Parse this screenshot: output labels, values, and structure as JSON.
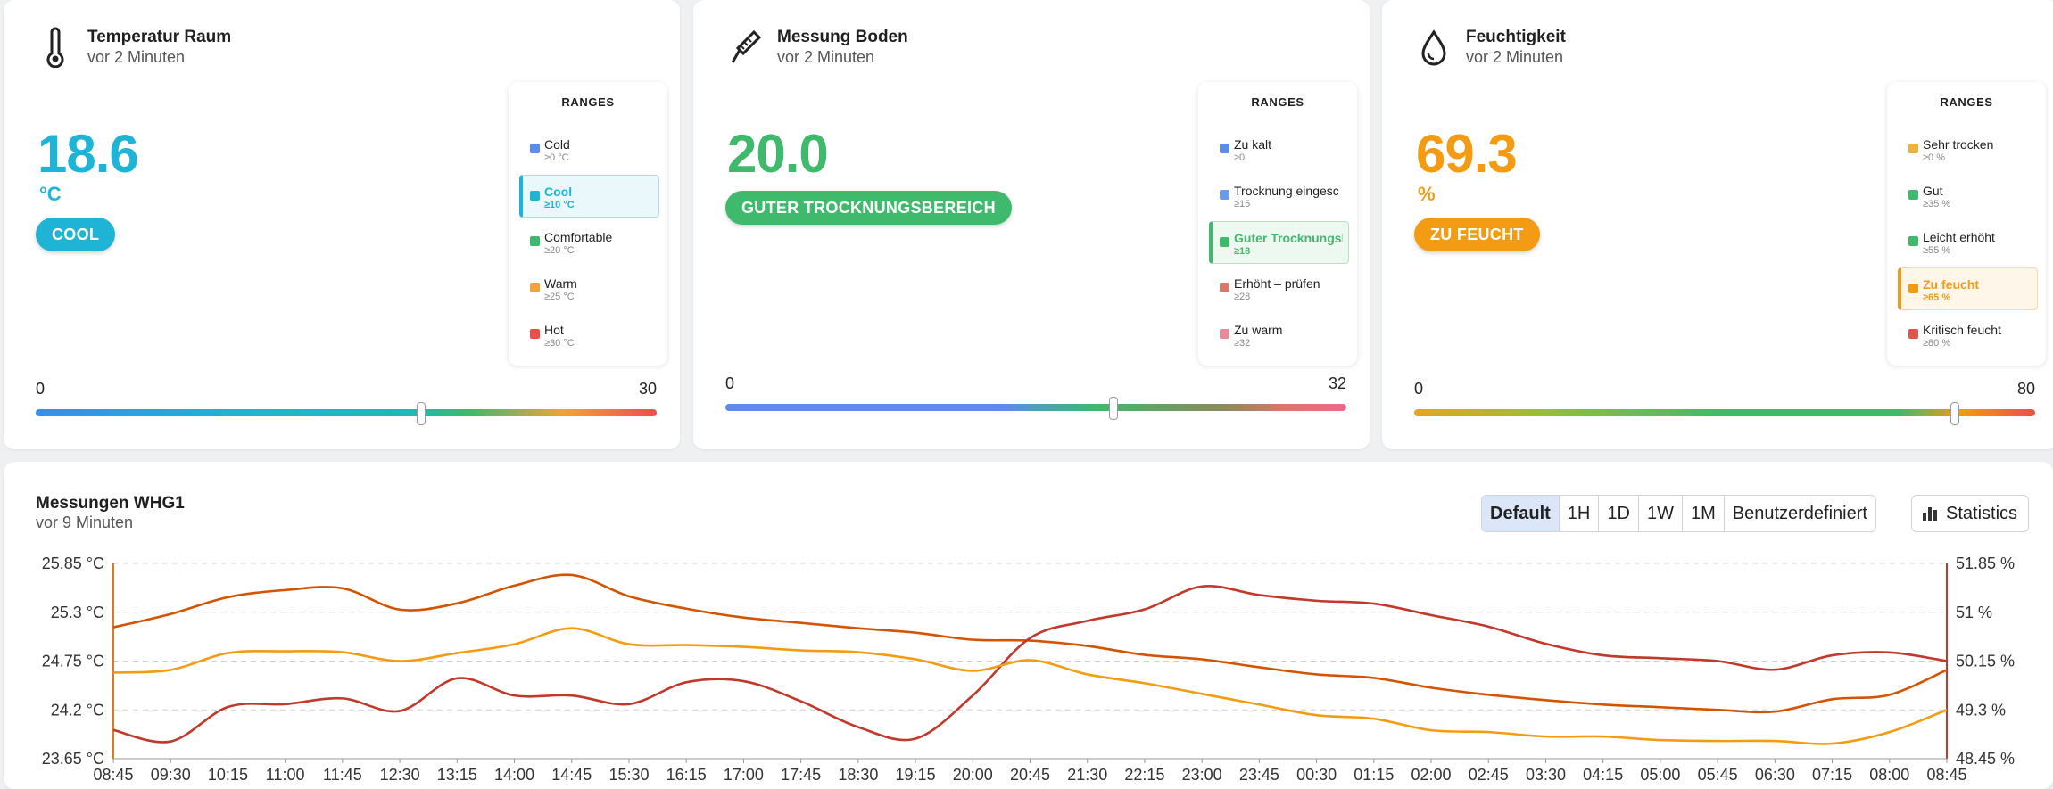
{
  "cards": [
    {
      "title": "Temperatur Raum",
      "subtitle": "vor 2 Minuten",
      "icon": "thermometer-icon",
      "value": "18.6",
      "unit": "°C",
      "state": "COOL",
      "color": "#1fb4d6",
      "ranges_title": "RANGES",
      "ranges": [
        {
          "label": "Cold",
          "min": "≥0 °C",
          "color": "#5b8de8"
        },
        {
          "label": "Cool",
          "min": "≥10 °C",
          "color": "#1fb4d6",
          "active": true
        },
        {
          "label": "Comfortable",
          "min": "≥20 °C",
          "color": "#3fb96b"
        },
        {
          "label": "Warm",
          "min": "≥25 °C",
          "color": "#f2a33a"
        },
        {
          "label": "Hot",
          "min": "≥30 °C",
          "color": "#e8504a"
        }
      ],
      "scale_min": "0",
      "scale_max": "30",
      "level": 0.62
    },
    {
      "title": "Messung Boden",
      "subtitle": "vor 2 Minuten",
      "icon": "sensor-probe-icon",
      "value": "20.0",
      "unit": "",
      "state": "GUTER TROCKNUNGSBEREICH",
      "color": "#3fb96b",
      "ranges_title": "RANGES",
      "ranges": [
        {
          "label": "Zu kalt",
          "min": "≥0",
          "color": "#5b8de8"
        },
        {
          "label": "Trocknung eingesc",
          "min": "≥15",
          "color": "#6a9ae8"
        },
        {
          "label": "Guter Trocknungsb",
          "min": "≥18",
          "color": "#3fb96b",
          "active": true
        },
        {
          "label": "Erhöht – prüfen",
          "min": "≥28",
          "color": "#d9776a"
        },
        {
          "label": "Zu warm",
          "min": "≥32",
          "color": "#ea8a98"
        }
      ],
      "scale_min": "0",
      "scale_max": "32",
      "level": 0.625
    },
    {
      "title": "Feuchtigkeit",
      "subtitle": "vor 2 Minuten",
      "icon": "water-drop-icon",
      "value": "69.3",
      "unit": "%",
      "state": "ZU FEUCHT",
      "color": "#f39b12",
      "ranges_title": "RANGES",
      "ranges": [
        {
          "label": "Sehr trocken",
          "min": "≥0 %",
          "color": "#f2b13a"
        },
        {
          "label": "Gut",
          "min": "≥35 %",
          "color": "#3fb96b"
        },
        {
          "label": "Leicht erhöht",
          "min": "≥55 %",
          "color": "#3fb96b"
        },
        {
          "label": "Zu feucht",
          "min": "≥65 %",
          "color": "#f39b12",
          "active": true
        },
        {
          "label": "Kritisch feucht",
          "min": "≥80 %",
          "color": "#e8504a"
        }
      ],
      "scale_min": "0",
      "scale_max": "80",
      "level": 0.87
    }
  ],
  "chart": {
    "title": "Messungen WHG1",
    "subtitle": "vor 9 Minuten",
    "range_buttons": [
      "Default",
      "1H",
      "1D",
      "1W",
      "1M",
      "Benutzerdefiniert"
    ],
    "selected_range": "Default",
    "statistics_label": "Statistics",
    "statistics_icon": "bar-chart-icon",
    "colors": {
      "left_axis": "#e07a1c",
      "right_axis": "#c0392b",
      "grid": "#d0d0d0"
    }
  },
  "chart_data": {
    "type": "line",
    "x": [
      "08:45",
      "09:30",
      "10:15",
      "11:00",
      "11:45",
      "12:30",
      "13:15",
      "14:00",
      "14:45",
      "15:30",
      "16:15",
      "17:00",
      "17:45",
      "18:30",
      "19:15",
      "20:00",
      "20:45",
      "21:30",
      "22:15",
      "23:00",
      "23:45",
      "00:30",
      "01:15",
      "02:00",
      "02:45",
      "03:30",
      "04:15",
      "05:00",
      "05:45",
      "06:30",
      "07:15",
      "08:00",
      "08:45"
    ],
    "y_left": {
      "ticks": [
        "25.85 °C",
        "25.3 °C",
        "24.75 °C",
        "24.2 °C",
        "23.65 °C"
      ],
      "range": [
        23.65,
        25.85
      ]
    },
    "y_right": {
      "ticks": [
        "51.85 %",
        "51 %",
        "50.15 %",
        "49.3 %",
        "48.45 %"
      ],
      "range": [
        48.45,
        51.85
      ]
    },
    "grid": true,
    "series": [
      {
        "axis": "left",
        "color": "#d35400",
        "values": [
          25.13,
          25.28,
          25.47,
          25.55,
          25.57,
          25.33,
          25.4,
          25.6,
          25.72,
          25.48,
          25.34,
          25.24,
          25.18,
          25.12,
          25.07,
          24.99,
          24.98,
          24.92,
          24.82,
          24.77,
          24.68,
          24.6,
          24.56,
          24.45,
          24.37,
          24.31,
          24.26,
          24.23,
          24.2,
          24.18,
          24.32,
          24.37,
          24.65
        ]
      },
      {
        "axis": "right",
        "color": "#c0392b",
        "values": [
          48.95,
          48.75,
          49.35,
          49.4,
          49.5,
          49.28,
          49.85,
          49.55,
          49.55,
          49.4,
          49.78,
          49.8,
          49.45,
          49.0,
          48.8,
          49.55,
          50.55,
          50.85,
          51.05,
          51.45,
          51.3,
          51.2,
          51.15,
          50.95,
          50.75,
          50.45,
          50.25,
          50.2,
          50.15,
          50.0,
          50.25,
          50.3,
          50.15
        ]
      },
      {
        "axis": "left",
        "color": "#f39c12",
        "values": [
          24.62,
          24.65,
          24.84,
          24.86,
          24.85,
          24.75,
          24.84,
          24.94,
          25.12,
          24.94,
          24.93,
          24.91,
          24.87,
          24.85,
          24.77,
          24.64,
          24.76,
          24.6,
          24.5,
          24.38,
          24.26,
          24.14,
          24.1,
          23.97,
          23.95,
          23.9,
          23.9,
          23.86,
          23.85,
          23.85,
          23.82,
          23.95,
          24.2
        ]
      }
    ]
  }
}
